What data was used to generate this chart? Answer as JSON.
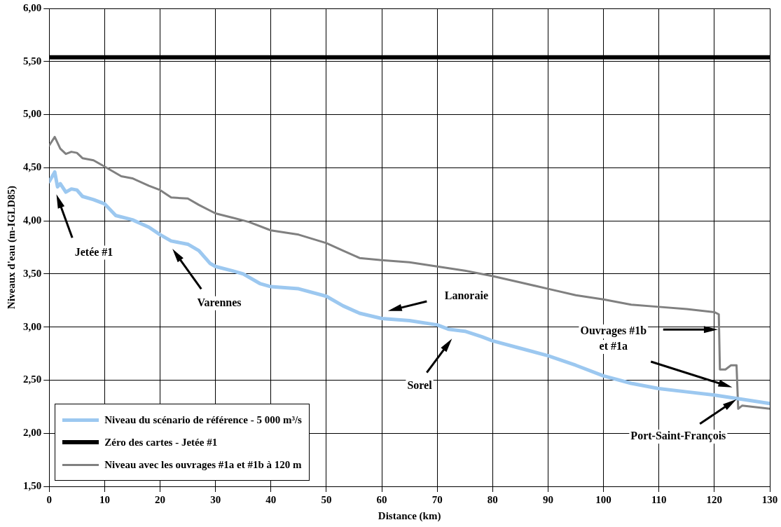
{
  "chart_data": {
    "type": "line",
    "xlabel": "Distance (km)",
    "ylabel": "Niveaux d'eau (m-IGLD85)",
    "xlim": [
      0,
      130
    ],
    "xticks": [
      0,
      10,
      20,
      30,
      40,
      50,
      60,
      70,
      80,
      90,
      100,
      110,
      120,
      130
    ],
    "ylim": [
      1.5,
      6
    ],
    "yticks": [
      {
        "value": 1.5,
        "label": "1,50"
      },
      {
        "value": 2,
        "label": "2,00"
      },
      {
        "value": 2.5,
        "label": "2,50"
      },
      {
        "value": 3,
        "label": "3,00"
      },
      {
        "value": 3.5,
        "label": "3,50"
      },
      {
        "value": 4,
        "label": "4,00"
      },
      {
        "value": 4.5,
        "label": "4,50"
      },
      {
        "value": 5,
        "label": "5,00"
      },
      {
        "value": 5.5,
        "label": "5,50"
      },
      {
        "value": 6,
        "label": "6,00"
      }
    ],
    "grid": true,
    "legend": "bottom left",
    "marker": "none",
    "line_style": "solid",
    "series": [
      {
        "name": "Niveau du scénario de référence - 5 000 m³/s",
        "color": "#9cc8f0",
        "x": [
          0,
          1,
          1.5,
          2,
          3,
          4,
          5,
          6,
          8,
          10,
          12,
          15,
          18,
          20,
          22,
          25,
          27,
          29,
          30,
          33,
          35,
          38,
          40,
          45,
          50,
          53,
          56,
          60,
          65,
          70,
          72,
          75,
          78,
          80,
          85,
          90,
          95,
          100,
          105,
          110,
          115,
          120,
          125,
          130
        ],
        "values": [
          4.37,
          4.46,
          4.32,
          4.35,
          4.27,
          4.3,
          4.29,
          4.23,
          4.2,
          4.16,
          4.05,
          4.01,
          3.94,
          3.87,
          3.81,
          3.78,
          3.72,
          3.6,
          3.57,
          3.53,
          3.5,
          3.41,
          3.38,
          3.36,
          3.29,
          3.2,
          3.13,
          3.08,
          3.06,
          3.02,
          2.98,
          2.96,
          2.91,
          2.87,
          2.8,
          2.73,
          2.64,
          2.54,
          2.47,
          2.42,
          2.39,
          2.36,
          2.32,
          2.28
        ]
      },
      {
        "name": "Zéro des cartes - Jetée #1",
        "color": "#000000",
        "x": [
          0,
          130
        ],
        "values": [
          5.54,
          5.54
        ]
      },
      {
        "name": "Niveau avec les ouvrages #1a et #1b à 120 m",
        "color": "#808080",
        "x": [
          0,
          1,
          2,
          3,
          4,
          5,
          6,
          8,
          10,
          13,
          15,
          18,
          20,
          22,
          25,
          27,
          30,
          33,
          36,
          40,
          45,
          50,
          53,
          56,
          60,
          65,
          70,
          75,
          80,
          85,
          90,
          95,
          100,
          105,
          110,
          115,
          120,
          120.8,
          121,
          122,
          123,
          124,
          124.3,
          125,
          130
        ],
        "values": [
          4.71,
          4.79,
          4.68,
          4.63,
          4.65,
          4.64,
          4.59,
          4.57,
          4.51,
          4.42,
          4.4,
          4.33,
          4.29,
          4.22,
          4.21,
          4.15,
          4.07,
          4.03,
          3.99,
          3.91,
          3.87,
          3.79,
          3.72,
          3.65,
          3.63,
          3.61,
          3.57,
          3.53,
          3.48,
          3.42,
          3.36,
          3.3,
          3.26,
          3.21,
          3.19,
          3.17,
          3.14,
          3.12,
          2.6,
          2.6,
          2.64,
          2.64,
          2.23,
          2.26,
          2.23
        ]
      }
    ],
    "annotations": [
      "Jetée #1",
      "Varennes",
      "Lanoraie",
      "Sorel",
      "Ouvrages #1b et #1a",
      {
        "text": "Port-Saint-François",
        "x": 124,
        "y": 2.32
      }
    ]
  }
}
